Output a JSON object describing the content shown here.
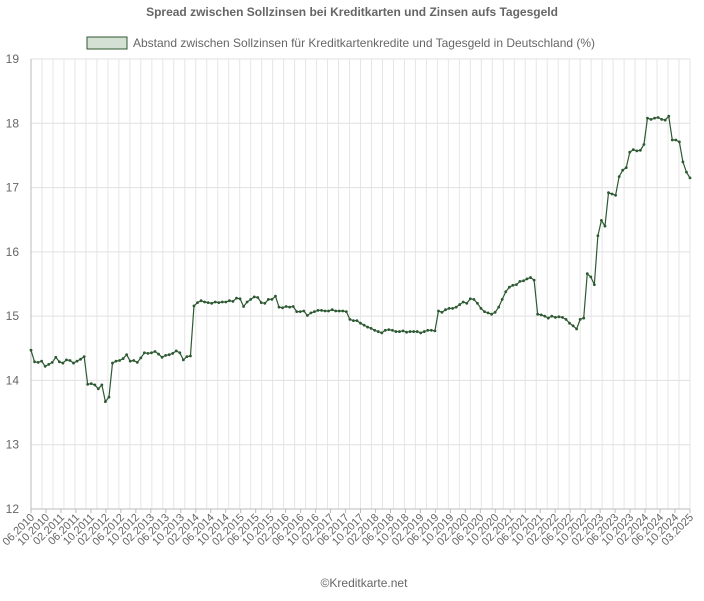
{
  "chart_data": {
    "type": "line",
    "title": "Spread zwischen Sollzinsen bei Kreditkarten und Zinsen aufs Tagesgeld",
    "xlabel": "",
    "ylabel": "",
    "ylim": [
      12,
      19
    ],
    "yticks": [
      12,
      13,
      14,
      15,
      16,
      17,
      18,
      19
    ],
    "grid": true,
    "legend_position": "top-center",
    "credit": "©Kreditkarte.net",
    "x_tick_labels": [
      "06.2010",
      "10.2010",
      "02.2011",
      "06.2011",
      "10.2011",
      "02.2012",
      "06.2012",
      "10.2012",
      "02.2013",
      "06.2013",
      "10.2013",
      "02.2014",
      "06.2014",
      "10.2014",
      "02.2015",
      "06.2015",
      "10.2015",
      "02.2016",
      "06.2016",
      "10.2016",
      "02.2017",
      "06.2017",
      "10.2017",
      "02.2018",
      "06.2018",
      "10.2018",
      "02.2019",
      "06.2019",
      "10.2019",
      "02.2020",
      "06.2020",
      "10.2020",
      "02.2021",
      "06.2021",
      "10.2021",
      "02.2022",
      "06.2022",
      "10.2022",
      "02.2023",
      "06.2023",
      "10.2023",
      "02.2024",
      "06.2024",
      "10.2024",
      "03.2025"
    ],
    "series": [
      {
        "name": "Abstand zwischen Sollzinsen für Kreditkartenkredite und Tagesgeld in Deutschland (%)",
        "color": "#2d5a32",
        "fill": "#d3e0d3",
        "values": [
          14.47,
          14.29,
          14.28,
          14.3,
          14.22,
          14.25,
          14.28,
          14.36,
          14.29,
          14.27,
          14.32,
          14.31,
          14.27,
          14.3,
          14.33,
          14.37,
          13.94,
          13.95,
          13.93,
          13.87,
          13.93,
          13.67,
          13.74,
          14.27,
          14.3,
          14.31,
          14.34,
          14.4,
          14.3,
          14.31,
          14.28,
          14.35,
          14.43,
          14.42,
          14.43,
          14.45,
          14.41,
          14.36,
          14.39,
          14.4,
          14.42,
          14.46,
          14.43,
          14.32,
          14.37,
          14.38,
          15.16,
          15.21,
          15.24,
          15.22,
          15.21,
          15.2,
          15.22,
          15.21,
          15.22,
          15.22,
          15.24,
          15.23,
          15.28,
          15.27,
          15.15,
          15.22,
          15.26,
          15.3,
          15.29,
          15.21,
          15.2,
          15.26,
          15.26,
          15.31,
          15.14,
          15.13,
          15.15,
          15.14,
          15.15,
          15.07,
          15.07,
          15.08,
          15.01,
          15.05,
          15.07,
          15.09,
          15.09,
          15.08,
          15.08,
          15.1,
          15.08,
          15.08,
          15.08,
          15.07,
          14.95,
          14.93,
          14.93,
          14.89,
          14.86,
          14.83,
          14.81,
          14.78,
          14.76,
          14.74,
          14.78,
          14.79,
          14.78,
          14.76,
          14.76,
          14.77,
          14.75,
          14.76,
          14.76,
          14.76,
          14.74,
          14.76,
          14.78,
          14.78,
          14.77,
          15.08,
          15.06,
          15.1,
          15.12,
          15.12,
          15.14,
          15.18,
          15.22,
          15.2,
          15.27,
          15.26,
          15.2,
          15.12,
          15.07,
          15.05,
          15.03,
          15.06,
          15.14,
          15.26,
          15.38,
          15.45,
          15.48,
          15.49,
          15.54,
          15.55,
          15.58,
          15.6,
          15.56,
          15.03,
          15.02,
          15.0,
          14.97,
          15.0,
          14.98,
          14.99,
          14.98,
          14.95,
          14.89,
          14.85,
          14.8,
          14.95,
          14.97,
          15.66,
          15.61,
          15.49,
          16.25,
          16.49,
          16.4,
          16.92,
          16.9,
          16.88,
          17.17,
          17.27,
          17.31,
          17.55,
          17.59,
          17.57,
          17.58,
          17.67,
          18.08,
          18.06,
          18.08,
          18.09,
          18.06,
          18.05,
          18.11,
          17.74,
          17.74,
          17.71,
          17.4,
          17.24,
          17.15
        ]
      }
    ]
  }
}
